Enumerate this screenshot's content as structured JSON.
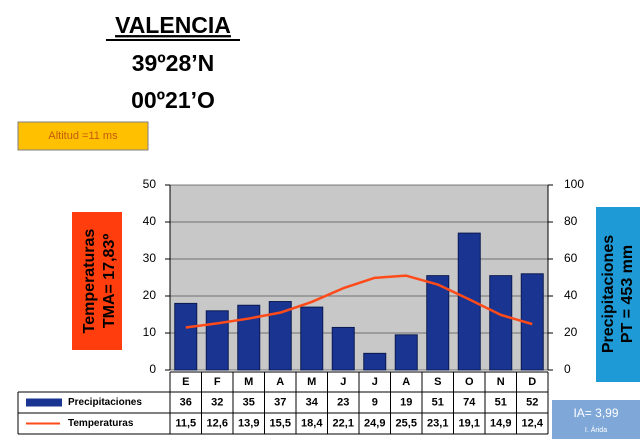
{
  "header": {
    "title": "VALENCIA",
    "latitude": "39º28’N",
    "longitude": "00º21’O"
  },
  "altitude": "Altitud =11 ms",
  "left_label": [
    "Temperaturas",
    "TMA= 17,83º"
  ],
  "right_label": [
    "Precipitaciones",
    "PT = 453 mm"
  ],
  "aridity": {
    "value": "IA= 3,99",
    "label": "I. Árida"
  },
  "chart_data": {
    "type": "bar",
    "categories": [
      "E",
      "F",
      "M",
      "A",
      "M",
      "J",
      "J",
      "A",
      "S",
      "O",
      "N",
      "D"
    ],
    "series": [
      {
        "name": "Precipitaciones",
        "color": "#1a3591",
        "axis": "y2",
        "values": [
          36,
          32,
          35,
          37,
          34,
          23,
          9,
          19,
          51,
          74,
          51,
          52
        ]
      },
      {
        "name": "Temperaturas",
        "color": "#ff4a1a",
        "type": "line",
        "values": [
          11.5,
          12.6,
          13.9,
          15.5,
          18.4,
          22.1,
          24.9,
          25.5,
          23.1,
          19.1,
          14.9,
          12.4
        ],
        "value_labels": [
          "11,5",
          "12,6",
          "13,9",
          "15,5",
          "18,4",
          "22,1",
          "24,9",
          "25,5",
          "23,1",
          "19,1",
          "14,9",
          "12,4"
        ]
      }
    ],
    "ylim": [
      0,
      50
    ],
    "yticks": [
      0,
      10,
      20,
      30,
      40,
      50
    ],
    "y2lim": [
      0,
      100
    ],
    "y2ticks": [
      0,
      20,
      40,
      60,
      80,
      100
    ],
    "grid": true
  }
}
